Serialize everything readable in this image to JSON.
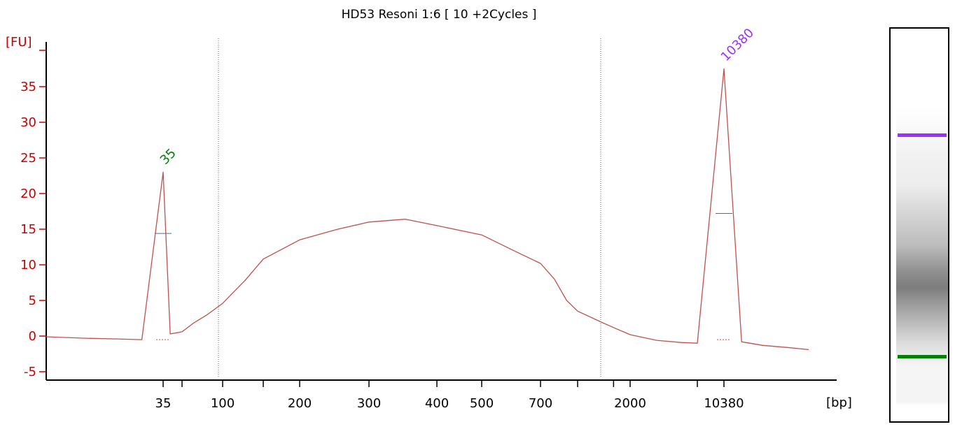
{
  "chart_data": {
    "type": "line",
    "title": "HD53 Resoni 1:6  [ 10 +2Cycles ]",
    "ylabel": "[FU]",
    "xlabel": "[bp]",
    "ylim": [
      -6,
      40
    ],
    "yticks": [
      -5,
      0,
      5,
      10,
      15,
      20,
      25,
      30,
      35
    ],
    "x_scale": "categorical-ladder",
    "x_tick_labels": [
      "35",
      "100",
      "200",
      "300",
      "400",
      "500",
      "700",
      "2000",
      "10380"
    ],
    "minor_ticks": [
      "50",
      "150",
      "1000",
      "1500",
      "7000"
    ],
    "region_markers_bp": [
      90,
      1200
    ],
    "peaks": [
      {
        "label": "35",
        "bp": 35,
        "height_fu": 23,
        "half_height_fu": 14.4,
        "color": "#008000"
      },
      {
        "label": "10380",
        "bp": 10380,
        "height_fu": 37.5,
        "half_height_fu": 17.2,
        "color": "#9b30ff"
      }
    ],
    "series": [
      {
        "color": "#c0504d",
        "points": [
          [
            "15",
            -0.1
          ],
          [
            "20",
            -0.3
          ],
          [
            "25",
            -0.4
          ],
          [
            "30",
            -0.5
          ],
          [
            "35",
            23.0
          ],
          [
            "40",
            0.3
          ],
          [
            "50",
            0.6
          ],
          [
            "60",
            1.8
          ],
          [
            "75",
            3.0
          ],
          [
            "100",
            4.6
          ],
          [
            "125",
            7.8
          ],
          [
            "150",
            10.8
          ],
          [
            "200",
            13.5
          ],
          [
            "250",
            15.0
          ],
          [
            "300",
            16.0
          ],
          [
            "350",
            16.4
          ],
          [
            "400",
            15.5
          ],
          [
            "500",
            14.2
          ],
          [
            "600",
            12.0
          ],
          [
            "700",
            10.2
          ],
          [
            "800",
            8.0
          ],
          [
            "900",
            5.0
          ],
          [
            "1000",
            3.5
          ],
          [
            "1200",
            2.0
          ],
          [
            "1500",
            1.2
          ],
          [
            "2000",
            0.2
          ],
          [
            "3000",
            -0.6
          ],
          [
            "5000",
            -0.9
          ],
          [
            "7000",
            -1.0
          ],
          [
            "10380",
            37.5
          ],
          [
            "11500",
            -0.8
          ],
          [
            "13000",
            -1.3
          ],
          [
            "15000",
            -1.6
          ],
          [
            "17000",
            -1.9
          ]
        ]
      }
    ]
  },
  "gel": {
    "upper_marker_color": "#9b30ff",
    "lower_marker_color": "#008000"
  }
}
